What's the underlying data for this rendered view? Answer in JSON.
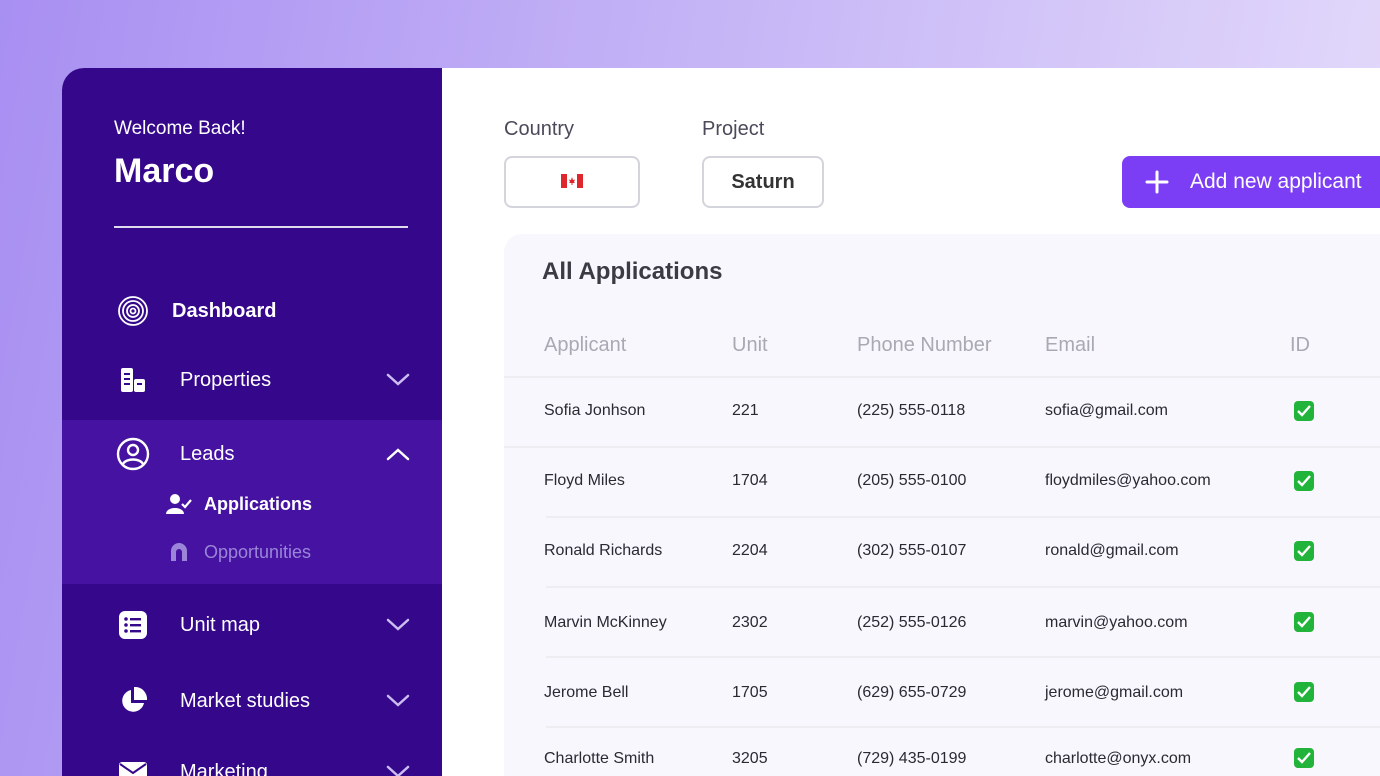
{
  "sidebar": {
    "welcome": "Welcome Back!",
    "user_name": "Marco",
    "items": [
      {
        "label": "Dashboard",
        "icon": "dashboard-icon"
      },
      {
        "label": "Properties",
        "icon": "properties-icon"
      },
      {
        "label": "Leads",
        "icon": "user-circle-icon"
      },
      {
        "label": "Unit map",
        "icon": "list-icon"
      },
      {
        "label": "Market studies",
        "icon": "pie-chart-icon"
      },
      {
        "label": "Marketing",
        "icon": "mail-icon"
      }
    ],
    "leads_sub": [
      {
        "label": "Applications",
        "icon": "user-check-icon"
      },
      {
        "label": "Opportunities",
        "icon": "magnet-icon"
      }
    ]
  },
  "filters": {
    "country_label": "Country",
    "country_value": "🇨🇦",
    "project_label": "Project",
    "project_value": "Saturn"
  },
  "actions": {
    "add_applicant": "Add new applicant"
  },
  "table": {
    "title": "All Applications",
    "columns": [
      "Applicant",
      "Unit",
      "Phone Number",
      "Email",
      "ID"
    ],
    "rows": [
      {
        "applicant": "Sofia Jonhson",
        "unit": "221",
        "phone": "(225) 555-0118",
        "email": "sofia@gmail.com",
        "id_verified": true
      },
      {
        "applicant": "Floyd Miles",
        "unit": "1704",
        "phone": "(205) 555-0100",
        "email": "floydmiles@yahoo.com",
        "id_verified": true
      },
      {
        "applicant": "Ronald Richards",
        "unit": "2204",
        "phone": "(302) 555-0107",
        "email": "ronald@gmail.com",
        "id_verified": true
      },
      {
        "applicant": "Marvin McKinney",
        "unit": "2302",
        "phone": "(252) 555-0126",
        "email": "marvin@yahoo.com",
        "id_verified": true
      },
      {
        "applicant": "Jerome Bell",
        "unit": "1705",
        "phone": "(629) 655-0729",
        "email": "jerome@gmail.com",
        "id_verified": true
      },
      {
        "applicant": "Charlotte Smith",
        "unit": "3205",
        "phone": "(729) 435-0199",
        "email": "charlotte@onyx.com",
        "id_verified": true
      }
    ]
  },
  "colors": {
    "sidebar_bg": "#34078b",
    "sidebar_active_bg": "#4512a1",
    "accent": "#7b3ef5",
    "check_green": "#22b43a"
  }
}
